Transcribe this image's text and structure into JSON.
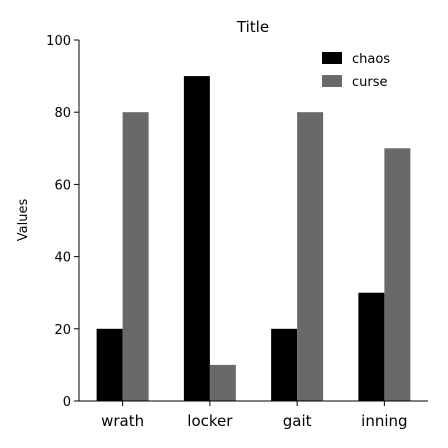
{
  "chart_data": {
    "type": "bar",
    "title": "Title",
    "xlabel": "",
    "ylabel": "Values",
    "ylim": [
      0,
      100
    ],
    "yticks": [
      0,
      20,
      40,
      60,
      80,
      100
    ],
    "categories": [
      "wrath",
      "locker",
      "gait",
      "inning"
    ],
    "series": [
      {
        "name": "chaos",
        "color": "#000000",
        "values": [
          20,
          90,
          20,
          30
        ]
      },
      {
        "name": "curse",
        "color": "#696969",
        "values": [
          80,
          10,
          80,
          70
        ]
      }
    ],
    "legend": "top-right",
    "grid": false
  }
}
